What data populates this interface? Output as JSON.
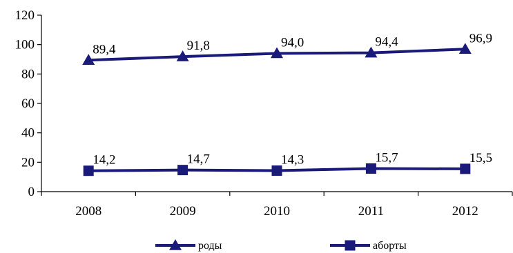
{
  "chart_data": {
    "type": "line",
    "title": "",
    "xlabel": "",
    "ylabel": "",
    "categories": [
      "2008",
      "2009",
      "2010",
      "2011",
      "2012"
    ],
    "ylim": [
      0,
      120
    ],
    "yticks": [
      0,
      20,
      40,
      60,
      80,
      100,
      120
    ],
    "grid": false,
    "legend_position": "bottom",
    "series": [
      {
        "name": "роды",
        "marker": "triangle",
        "color": "#1a1a7a",
        "values": [
          89.4,
          91.8,
          94.0,
          94.4,
          96.9
        ],
        "labels": [
          "89,4",
          "91,8",
          "94,0",
          "94,4",
          "96,9"
        ]
      },
      {
        "name": "аборты",
        "marker": "square",
        "color": "#1a1a7a",
        "values": [
          14.2,
          14.7,
          14.3,
          15.7,
          15.5
        ],
        "labels": [
          "14,2",
          "14,7",
          "14,3",
          "15,7",
          "15,5"
        ]
      }
    ]
  }
}
